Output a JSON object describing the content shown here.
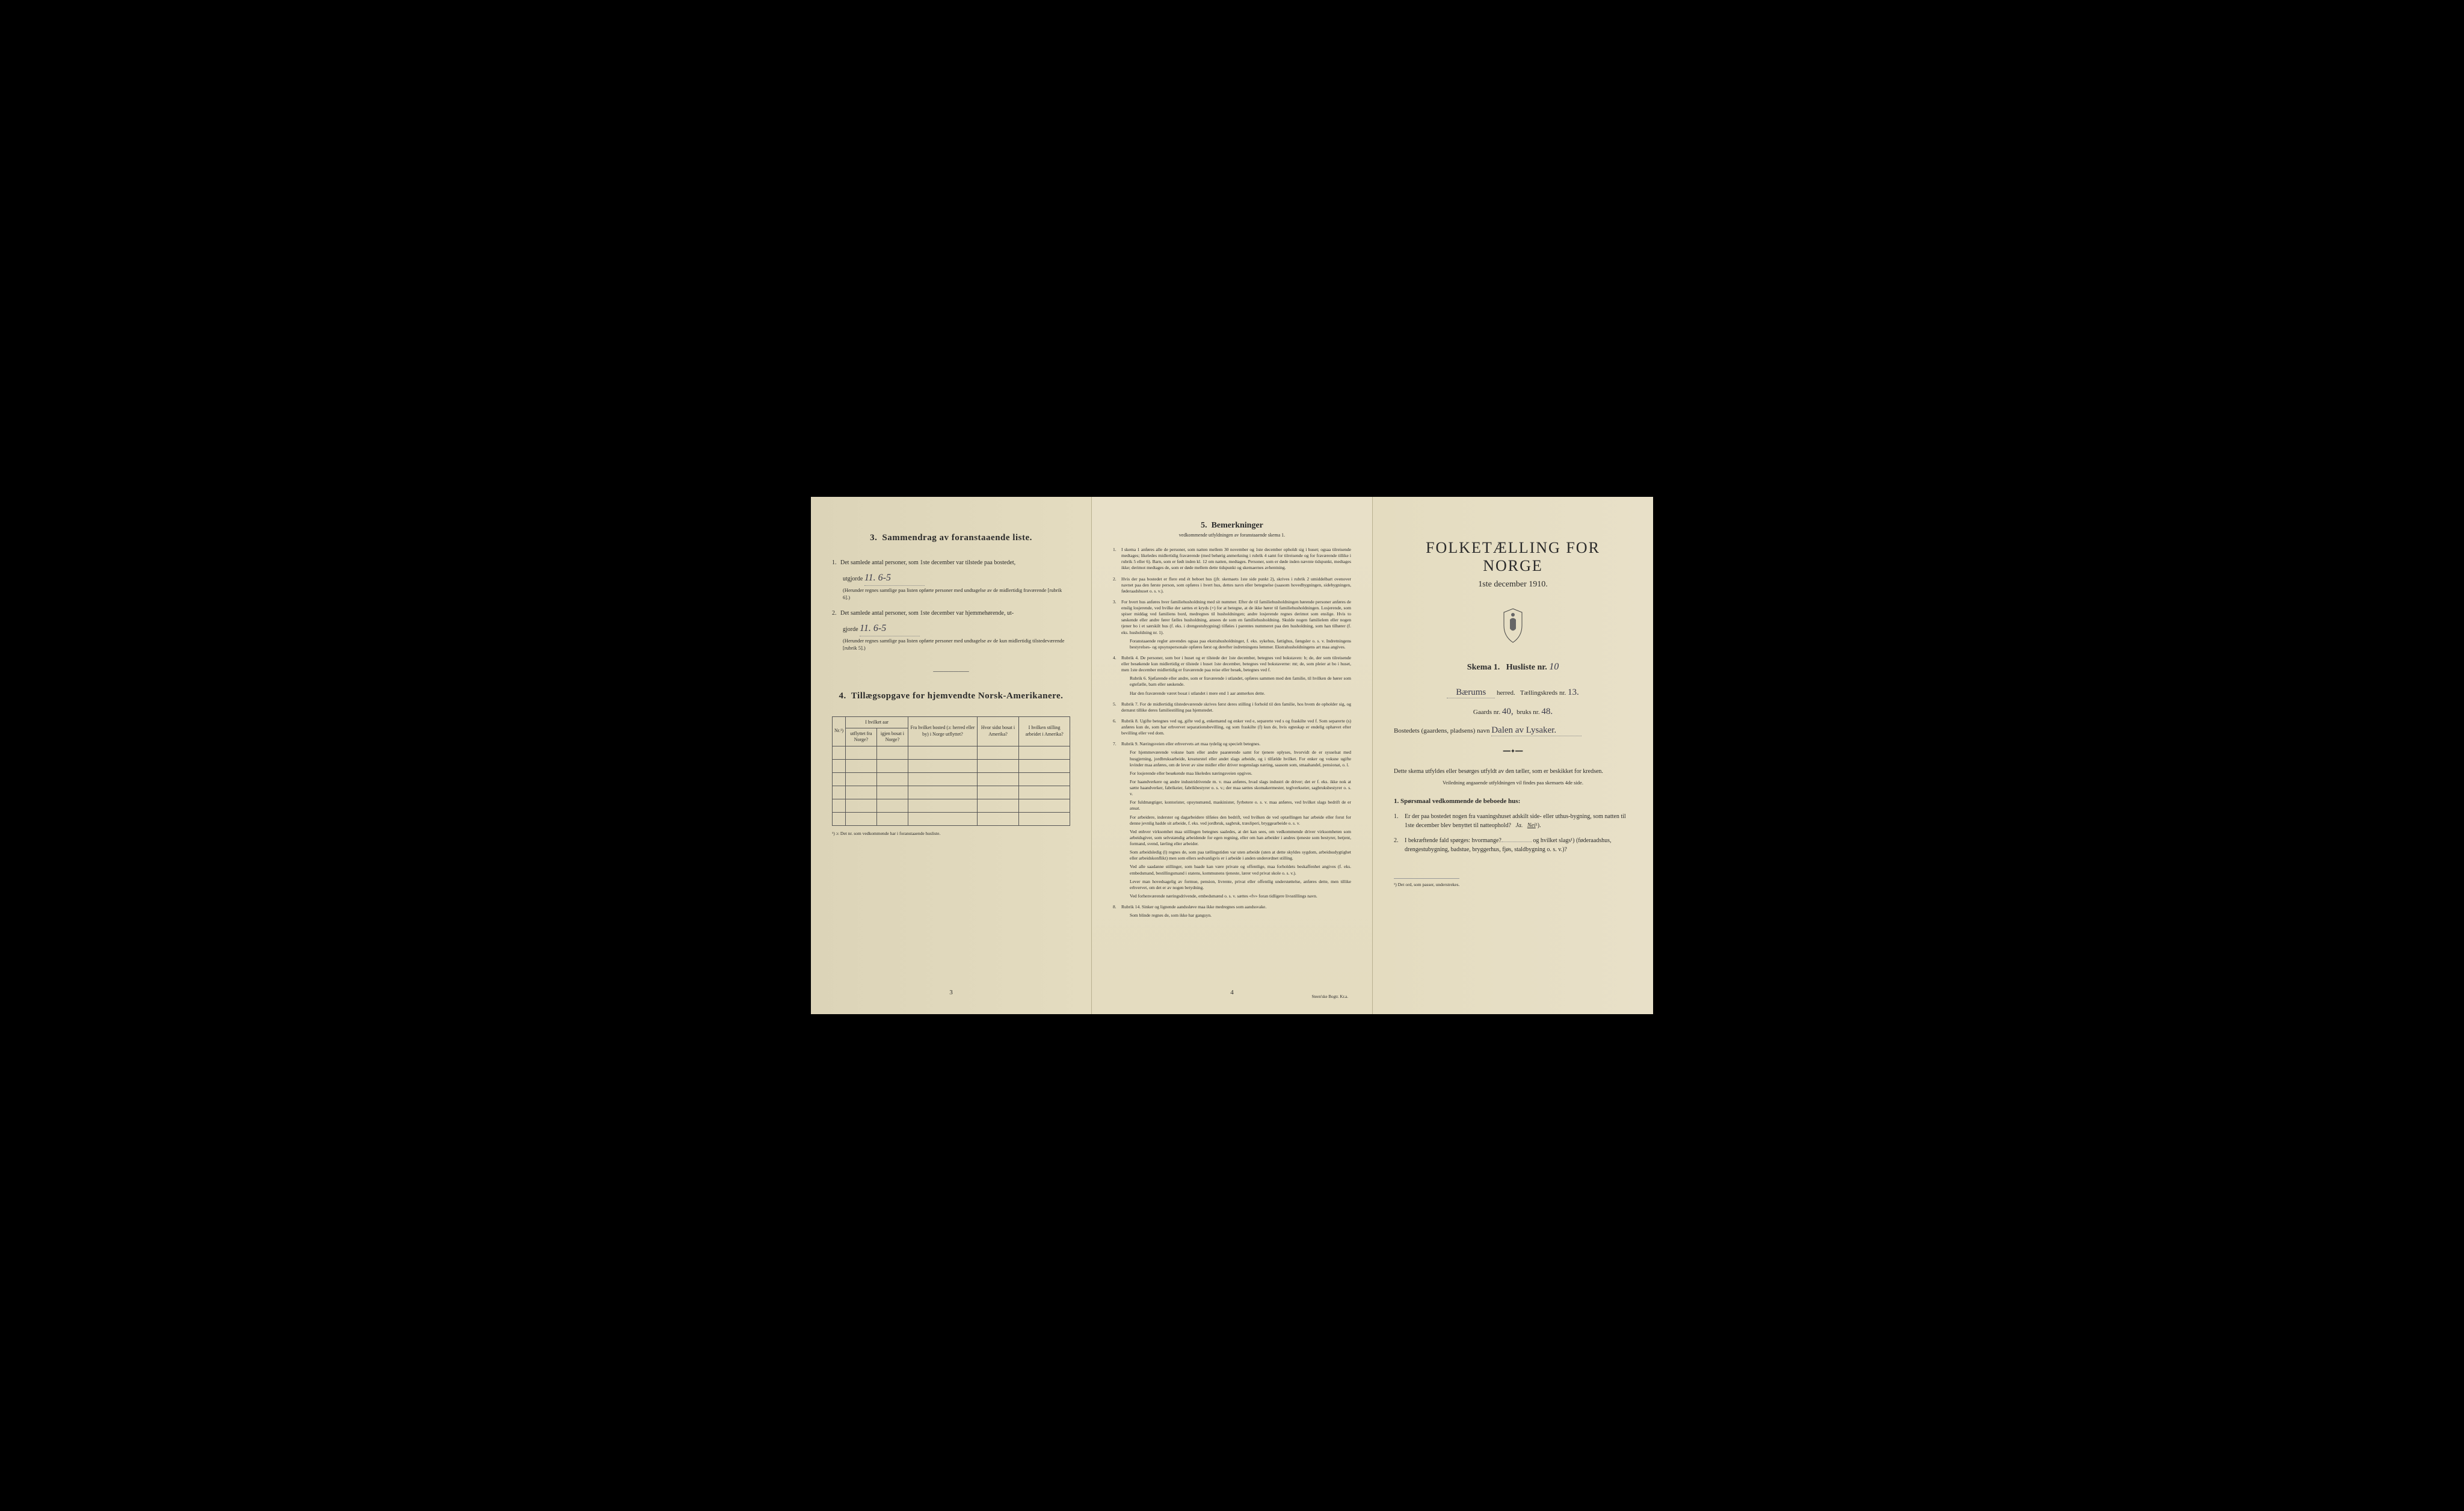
{
  "colors": {
    "paper": "#e4dcc0",
    "paper_edge": "#dcd4b8",
    "ink": "#2a2a2a",
    "handwriting": "#3a3a4a",
    "border": "#555555",
    "background": "#000000"
  },
  "page1": {
    "section3": {
      "title": "Sammendrag av foranstaaende liste.",
      "num": "3.",
      "item1_text": "Det samlede antal personer, som 1ste december var tilstede paa bostedet,",
      "item1_label": "utgjorde",
      "item1_value": "11. 6-5",
      "item1_note": "(Herunder regnes samtlige paa listen opførte personer med undtagelse av de midlertidig fraværende [rubrik 6].)",
      "item2_text": "Det samlede antal personer, som 1ste december var hjemmehørende, ut-",
      "item2_label": "gjorde",
      "item2_value": "11. 6-5",
      "item2_note": "(Herunder regnes samtlige paa listen opførte personer med undtagelse av de kun midlertidig tilstedeværende [rubrik 5].)"
    },
    "section4": {
      "title": "Tillægsopgave for hjemvendte Norsk-Amerikanere.",
      "num": "4.",
      "headers": {
        "nr": "Nr.¹)",
        "hvilket_aar": "I hvilket aar",
        "utflyttet": "utflyttet fra Norge?",
        "bosat": "igjen bosat i Norge?",
        "fra_bosted": "Fra hvilket bosted (ɔ: herred eller by) i Norge utflyttet?",
        "hvor_sidst": "Hvor sidst bosat i Amerika?",
        "stilling": "I hvilken stilling arbeidet i Amerika?"
      },
      "rows": 6,
      "footnote": "¹) ɔ: Det nr. som vedkommende har i foranstaaende husliste."
    },
    "page_num": "3"
  },
  "page2": {
    "title": "Bemerkninger",
    "num": "5.",
    "subtitle": "vedkommende utfyldningen av foranstaaende skema 1.",
    "items": [
      {
        "n": "1.",
        "text": "I skema 1 anføres alle de personer, som natten mellem 30 november og 1ste december opholdt sig i huset; ogsaa tilreisende medtages; likeledes midlertidig fraværende (med behørig anmerkning i rubrik 4 samt for tilreisende og for fraværende tillike i rubrik 5 eller 6). Barn, som er født inden kl. 12 om natten, medtages. Personer, som er døde inden nævnte tidspunkt, medtages ikke; derimot medtages de, som er døde mellem dette tidspunkt og skemaernes avhentning."
      },
      {
        "n": "2.",
        "text": "Hvis der paa bostedet er flere end ét beboet hus (jfr. skemaets 1ste side punkt 2), skrives i rubrik 2 umiddelbart ovenover navnet paa den første person, som opføres i hvert hus, dettes navn eller betegnelse (saasom hovedbygningen, sidebygningen, føderaadshuset o. s. v.)."
      },
      {
        "n": "3.",
        "text": "For hvert hus anføres hver familiehusholdning med sit nummer. Efter de til familiehusholdningen hørende personer anføres de enslig losjerende, ved hvilke der sættes et kryds (×) for at betegne, at de ikke hører til familiehusholdningen. Losjerende, som spiser middag ved familiens bord, medregnes til husholdningen; andre losjerende regnes derimot som enslige. Hvis to søskende eller andre fører fælles husholdning, ansees de som en familiehusholdning. Skulde nogen familielem eller nogen tjener bo i et særskilt hus (f. eks. i drengestubygning) tilføies i parentes nummeret paa den husholdning, som han tilhører (f. eks. husholdning nr. 1).",
        "extra": "Foranstaaende regler anvendes ogsaa paa ekstrahusholdninger, f. eks. sykehus, fattighus, fængsler o. s. v. Indretningens bestyrelses- og opsynspersonale opføres først og derefter indretningens lemmer. Ekstrahusholdningens art maa angives."
      },
      {
        "n": "4.",
        "text": "Rubrik 4. De personer, som bor i huset og er tilstede der 1ste december, betegnes ved bokstaven: b; de, der som tilreisende eller besøkende kun midlertidig er tilstede i huset 1ste december, betegnes ved bokstaverne: mt; de, som pleier at bo i huset, men 1ste december midlertidig er fraværende paa reise eller besøk, betegnes ved f.",
        "extra": "Rubrik 6. Sjøfarende eller andre, som er fraværende i utlandet, opføres sammen med den familie, til hvilken de hører som egtefælle, barn eller søskende.",
        "extra2": "Har den fraværende været bosat i utlandet i mere end 1 aar anmerkes dette."
      },
      {
        "n": "5.",
        "text": "Rubrik 7. For de midlertidig tilstedeværende skrives først deres stilling i forhold til den familie, hos hvem de opholder sig, og dernæst tillike deres familiestilling paa hjemstedet."
      },
      {
        "n": "6.",
        "text": "Rubrik 8. Ugifte betegnes ved ug, gifte ved g, enkemænd og enker ved e, separerte ved s og fraskilte ved f. Som separerte (s) anføres kun de, som har erhvervet separationsbevilling, og som fraskilte (f) kun de, hvis egteskap er endelig ophævet efter bevilling eller ved dom."
      },
      {
        "n": "7.",
        "text": "Rubrik 9. Næringsveien eller erhvervets art maa tydelig og specielt betegnes.",
        "extra": "For hjemmeværende voksne barn eller andre paarørende samt for tjenere oplyses, hvorvidt de er sysselsat med husgjerning, jordbruksarbeide, kreaturstel eller andet slags arbeide, og i tilfælde hvilket. For enker og voksne ugifte kvinder maa anføres, om de lever av sine midler eller driver nogenslags næring, saasom som, smaahandel, pensionat, o. l.",
        "extra2": "For losjerende eller besøkende maa likeledes næringsveien opgives.",
        "extra3": "For haandverkere og andre industridrivende m. v. maa anføres, hvad slags industri de driver; det er f. eks. ikke nok at sætte haandverker, fabrikeier, fabrikbestyrer o. s. v.; der maa sættes skomakermester, teglverkseier, sagbruksbestyrer o. s. v.",
        "extra4": "For fuldmægtiger, kontorister, opsynsmænd, maskinister, fyrbetere o. s. v. maa anføres, ved hvilket slags bedrift de er ansat.",
        "extra5": "For arbeidere, inderster og dagarbeidere tilføies den bedrift, ved hvilken de ved optællingen har arbeide eller forut for denne jevnlig hadde sit arbeide, f. eks. ved jordbruk, sagbruk, træsliperi, bryggearbeide o. s. v.",
        "extra6": "Ved enhver virksomhet maa stillingen betegnes saaledes, at det kan sees, om vedkommende driver virksomheten som arbeidsgiver, som selvstændig arbeidende for egen regning, eller om han arbeider i andres tjeneste som bestyrer, betjent, formand, svend, lærling eller arbeider.",
        "extra7": "Som arbeidsledig (l) regnes de, som paa tællingstiden var uten arbeide (uten at dette skyldes sygdom, arbeidsudygtighet eller arbeidskonflikt) men som ellers sedvanligvis er i arbeide i anden underordnet stilling.",
        "extra8": "Ved alle saadanne stillinger, som baade kan være private og offentlige, maa forholdets beskaffenhet angives (f. eks. embedsmand, bestillingsmand i statens, kommunens tjeneste, lærer ved privat skole o. s. v.).",
        "extra9": "Lever man hovedsagelig av formue, pension, livrente, privat eller offentlig understøttelse, anføres dette, men tillike erhvervet, om det er av nogen betydning.",
        "extra10": "Ved forhenværende næringsdrivende, embedsmænd o. s. v. sættes «fv» foran tidligere livsstillings navn."
      },
      {
        "n": "8.",
        "text": "Rubrik 14. Sinker og lignende aandssløve maa ikke medregnes som aandssvake.",
        "extra": "Som blinde regnes de, som ikke har gangsyn."
      }
    ],
    "page_num": "4",
    "printer": "Steen'ske Bogtr. Kr.a."
  },
  "page3": {
    "main_title": "FOLKETÆLLING FOR NORGE",
    "date": "1ste december 1910.",
    "skema_label": "Skema 1.",
    "husliste_label": "Husliste nr.",
    "husliste_nr": "10",
    "herred_value": "Bærums",
    "herred_label": "herred.",
    "tkreds_label": "Tællingskreds nr.",
    "tkreds_nr": "13.",
    "gaards_label": "Gaards nr.",
    "gaards_nr": "40,",
    "bruks_label": "bruks nr.",
    "bruks_nr": "48.",
    "bosted_label": "Bostedets (gaardens, pladsens) navn",
    "bosted_value": "Dalen av Lysaker.",
    "instruction": "Dette skema utfyldes eller besørges utfyldt av den tæller, som er beskikket for kredsen.",
    "instruction_sub": "Veiledning angaaende utfyldningen vil findes paa skemaets 4de side.",
    "q_title": "1. Spørsmaal vedkommende de beboede hus:",
    "q1": "Er der paa bostedet nogen fra vaaningshuset adskilt side- eller uthus-bygning, som natten til 1ste december blev benyttet til natteophold?",
    "q1_ja": "Ja.",
    "q1_nei": "Nei",
    "q1_sup": "¹).",
    "q2": "I bekræftende fald spørges: hvormange?",
    "q2_tail": "og hvilket slags¹) (føderaadshus, drengestubygning, badstue, bryggerhus, fjøs, staldbygning o. s. v.)?",
    "footnote": "¹) Det ord, som passer, understrekes."
  }
}
